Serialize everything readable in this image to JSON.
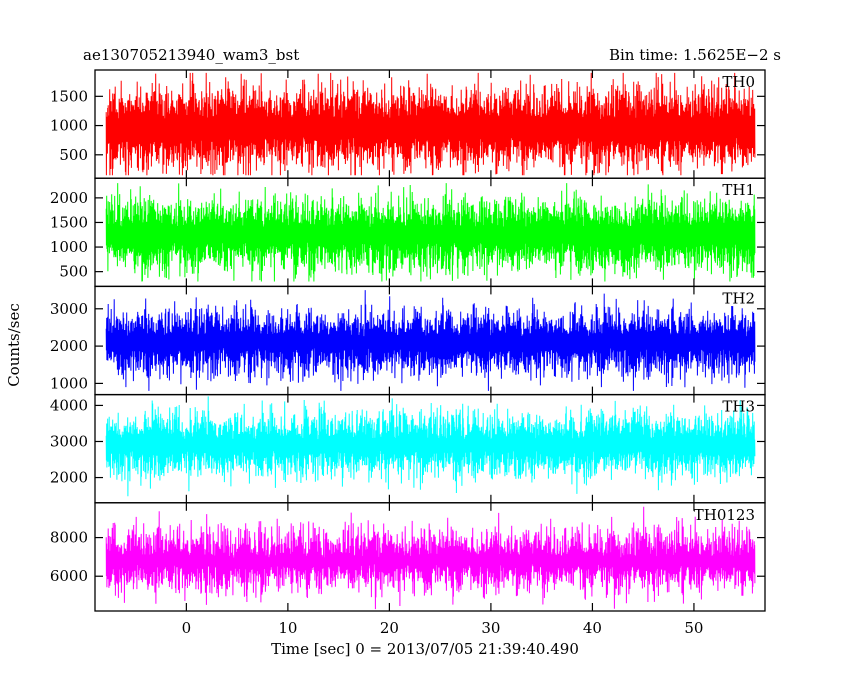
{
  "header": {
    "title": "ae130705213940_wam3_bst",
    "bin_time": "Bin time: 1.5625E−2 s"
  },
  "ylabel": "Counts/sec",
  "xlabel": "Time [sec] 0 = 2013/07/05 21:39:40.490",
  "chart_data": {
    "type": "line",
    "title": "ae130705213940_wam3_bst",
    "subtitle": "Bin time: 1.5625E−2 s",
    "xlabel": "Time [sec] 0 = 2013/07/05 21:39:40.490",
    "ylabel": "Counts/sec",
    "xlim": [
      -9,
      57
    ],
    "x_range_data": [
      -7.9,
      56.0
    ],
    "x_ticks": [
      0,
      10,
      20,
      30,
      40,
      50
    ],
    "x_tick_labels": [
      "0",
      "10",
      "20",
      "30",
      "40",
      "50"
    ],
    "grid": false,
    "legend": "none",
    "panels": [
      {
        "name": "TH0",
        "color": "#ff0000",
        "ylim": [
          100,
          1950
        ],
        "y_ticks": [
          500,
          1000,
          1500
        ],
        "y_tick_labels": [
          "500",
          "1000",
          "1500"
        ],
        "mean": 950,
        "min": 150,
        "max": 1900,
        "noise_sd": 360
      },
      {
        "name": "TH1",
        "color": "#00ff00",
        "ylim": [
          200,
          2400
        ],
        "y_ticks": [
          500,
          1000,
          1500,
          2000
        ],
        "y_tick_labels": [
          "500",
          "1000",
          "1500",
          "2000"
        ],
        "mean": 1250,
        "min": 300,
        "max": 2300,
        "noise_sd": 380
      },
      {
        "name": "TH2",
        "color": "#0000ff",
        "ylim": [
          700,
          3600
        ],
        "y_ticks": [
          1000,
          2000,
          3000
        ],
        "y_tick_labels": [
          "1000",
          "2000",
          "3000"
        ],
        "mean": 2100,
        "min": 800,
        "max": 3500,
        "noise_sd": 470
      },
      {
        "name": "TH3",
        "color": "#00ffff",
        "ylim": [
          1300,
          4300
        ],
        "y_ticks": [
          2000,
          3000,
          4000
        ],
        "y_tick_labels": [
          "2000",
          "3000",
          "4000"
        ],
        "mean": 2900,
        "min": 1400,
        "max": 4250,
        "noise_sd": 480
      },
      {
        "name": "TH0123",
        "color": "#ff00ff",
        "ylim": [
          4200,
          9800
        ],
        "y_ticks": [
          6000,
          8000
        ],
        "y_tick_labels": [
          "6000",
          "8000"
        ],
        "mean": 6800,
        "min": 4300,
        "max": 9600,
        "noise_sd": 950
      }
    ]
  }
}
